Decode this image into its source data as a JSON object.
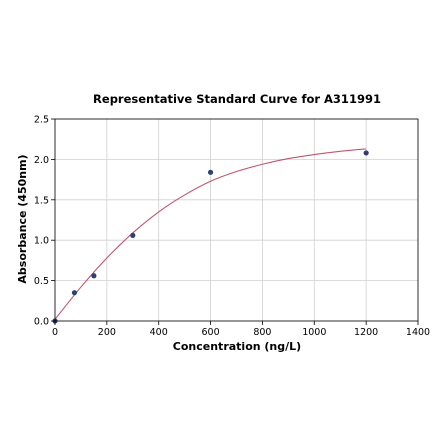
{
  "chart_data": {
    "type": "scatter",
    "title": "Representative Standard Curve for A311991",
    "xlabel": "Concentration (ng/L)",
    "ylabel": "Absorbance (450nm)",
    "xlim": [
      0,
      1400
    ],
    "ylim": [
      0,
      2.5
    ],
    "x_ticks": [
      "0",
      "200",
      "400",
      "600",
      "800",
      "1000",
      "1200",
      "1400"
    ],
    "y_ticks": [
      "0.0",
      "0.5",
      "1.0",
      "1.5",
      "2.0",
      "2.5"
    ],
    "grid": true,
    "series": [
      {
        "kind": "points",
        "color": "#2e3f73",
        "x": [
          0,
          75,
          150,
          300,
          600,
          1200
        ],
        "y": [
          0.0,
          0.35,
          0.56,
          1.06,
          1.84,
          2.08
        ]
      },
      {
        "kind": "fitted-curve",
        "color": "#c0566e",
        "x": [
          0,
          100,
          200,
          300,
          400,
          500,
          600,
          700,
          800,
          900,
          1000,
          1100,
          1200
        ],
        "y": [
          0.02,
          0.42,
          0.78,
          1.09,
          1.35,
          1.56,
          1.73,
          1.85,
          1.94,
          2.01,
          2.06,
          2.1,
          2.13
        ]
      }
    ]
  }
}
